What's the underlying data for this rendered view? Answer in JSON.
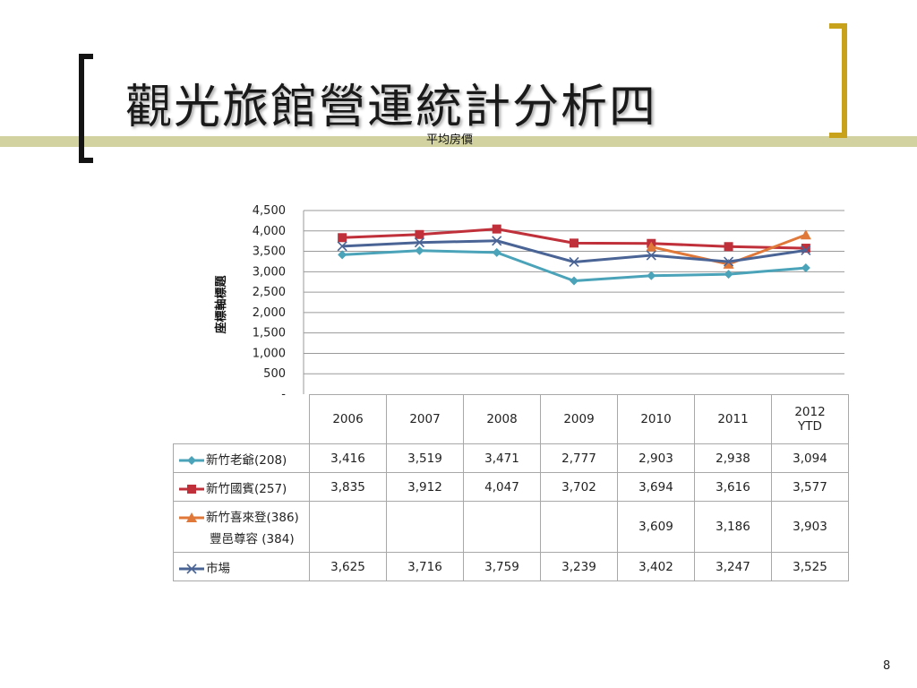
{
  "slide": {
    "title": "觀光旅館營運統計分析四",
    "page_number": "8"
  },
  "chart_data": {
    "type": "line",
    "title": "平均房價",
    "ylabel": "座標軸標題",
    "xlabel": "",
    "categories": [
      "2006",
      "2007",
      "2008",
      "2009",
      "2010",
      "2011",
      "2012 YTD"
    ],
    "ylim": [
      0,
      4500
    ],
    "yticks": [
      "-",
      "500",
      "1,000",
      "1,500",
      "2,000",
      "2,500",
      "3,000",
      "3,500",
      "4,000",
      "4,500"
    ],
    "grid": true,
    "series": [
      {
        "name": "新竹老爺(208)",
        "color": "#4aa3b8",
        "marker": "diamond",
        "values": [
          3416,
          3519,
          3471,
          2777,
          2903,
          2938,
          3094
        ],
        "labels": [
          "3,416",
          "3,519",
          "3,471",
          "2,777",
          "2,903",
          "2,938",
          "3,094"
        ]
      },
      {
        "name": "新竹國賓(257)",
        "color": "#c0303a",
        "marker": "square",
        "values": [
          3835,
          3912,
          4047,
          3702,
          3694,
          3616,
          3577
        ],
        "labels": [
          "3,835",
          "3,912",
          "4,047",
          "3,702",
          "3,694",
          "3,616",
          "3,577"
        ]
      },
      {
        "name": "新竹喜來登(386)",
        "name2": "豐邑尊容 (384)",
        "color": "#e0783a",
        "marker": "triangle",
        "values": [
          null,
          null,
          null,
          null,
          3609,
          3186,
          3903
        ],
        "labels": [
          "",
          "",
          "",
          "",
          "3,609",
          "3,186",
          "3,903"
        ]
      },
      {
        "name": "市場",
        "color": "#4a6496",
        "marker": "x",
        "values": [
          3625,
          3716,
          3759,
          3239,
          3402,
          3247,
          3525
        ],
        "labels": [
          "3,625",
          "3,716",
          "3,759",
          "3,239",
          "3,402",
          "3,247",
          "3,525"
        ]
      }
    ]
  }
}
